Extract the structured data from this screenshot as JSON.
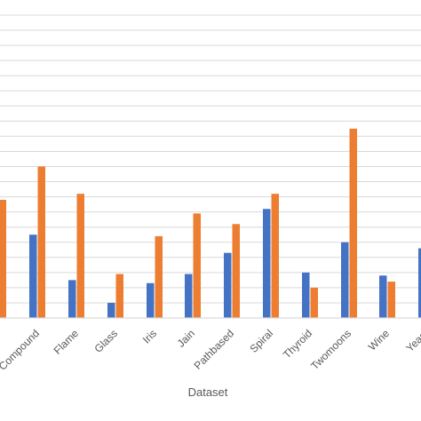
{
  "chart_data": {
    "type": "bar",
    "title": "",
    "xlabel": "Dataset",
    "ylabel": "",
    "categories": [
      "",
      "Compound",
      "Flame",
      "Glass",
      "Iris",
      "Jain",
      "Pathbased",
      "Spiral",
      "Thyroid",
      "Twomoons",
      "Wine",
      "Yeast"
    ],
    "series": [
      {
        "color": "#4472c4",
        "values": [
          null,
          5.5,
          2.5,
          1.0,
          2.3,
          2.9,
          4.3,
          7.2,
          3.0,
          5.0,
          2.8,
          4.6
        ]
      },
      {
        "color": "#ed7d31",
        "values": [
          7.8,
          10.0,
          8.2,
          2.9,
          5.4,
          6.9,
          6.2,
          8.2,
          2.0,
          12.5,
          2.4,
          null
        ]
      }
    ],
    "ylim": [
      0,
      20
    ],
    "grid": true,
    "legend": "none"
  }
}
